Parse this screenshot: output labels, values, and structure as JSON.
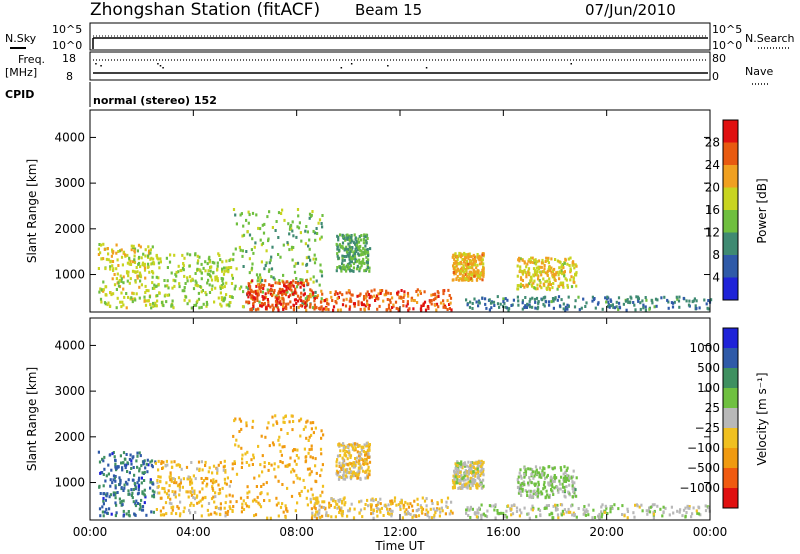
{
  "header": {
    "station": "Zhongshan Station (fitACF)",
    "beam": "Beam 15",
    "date": "07/Jun/2010"
  },
  "noise_panel": {
    "left_label": "N.Sky",
    "right_label": "N.Search",
    "left_top": "10^5",
    "left_bottom": "10^0",
    "right_top": "10^5",
    "right_bottom": "10^0"
  },
  "freq_panel": {
    "left_label_1": "Freq.",
    "left_label_2": "[MHz]",
    "left_top": "18",
    "left_bottom": "8",
    "right_label": "Nave",
    "right_top": "80",
    "right_bottom": "0"
  },
  "cpid_panel": {
    "label": "CPID",
    "text": "normal (stereo) 152"
  },
  "x_axis": {
    "label": "Time UT",
    "ticks": [
      "00:00",
      "04:00",
      "08:00",
      "12:00",
      "16:00",
      "20:00",
      "00:00"
    ],
    "range_hours": [
      0,
      24
    ]
  },
  "chart_data": [
    {
      "type": "heatmap",
      "ylabel": "Slant Range [km]",
      "yticks": [
        "1000",
        "2000",
        "3000",
        "4000"
      ],
      "ylim_km": [
        180,
        4600
      ],
      "colorbar_label": "Power [dB]",
      "colorbar_ticks": [
        "4",
        "8",
        "12",
        "16",
        "20",
        "24",
        "28"
      ],
      "colorbar_range": [
        0,
        32
      ],
      "colors": [
        "#1f23d8",
        "#2f5aa8",
        "#3f8a72",
        "#6fbf3f",
        "#c8d420",
        "#f0a020",
        "#e85a10",
        "#e01010"
      ],
      "regions": [
        {
          "t": [
            0.3,
            2.5
          ],
          "r": [
            300,
            1700
          ],
          "v": 18
        },
        {
          "t": [
            2.5,
            5.5
          ],
          "r": [
            300,
            1500
          ],
          "v": 16
        },
        {
          "t": [
            5.5,
            9.0
          ],
          "r": [
            250,
            2500
          ],
          "v": 14
        },
        {
          "t": [
            6.0,
            8.5
          ],
          "r": [
            250,
            900
          ],
          "v": 27
        },
        {
          "t": [
            8.5,
            14.0
          ],
          "r": [
            250,
            700
          ],
          "v": 26
        },
        {
          "t": [
            9.5,
            10.8
          ],
          "r": [
            1100,
            1900
          ],
          "v": 12
        },
        {
          "t": [
            14.0,
            15.2
          ],
          "r": [
            900,
            1500
          ],
          "v": 21
        },
        {
          "t": [
            16.5,
            18.8
          ],
          "r": [
            700,
            1400
          ],
          "v": 19
        },
        {
          "t": [
            14.5,
            24.0
          ],
          "r": [
            250,
            550
          ],
          "v": 9
        }
      ]
    },
    {
      "type": "heatmap",
      "ylabel": "Slant Range [km]",
      "yticks": [
        "1000",
        "2000",
        "3000",
        "4000"
      ],
      "ylim_km": [
        180,
        4600
      ],
      "colorbar_label": "Velocity [m s⁻¹]",
      "colorbar_ticks": [
        "1000",
        "500",
        "100",
        "25",
        "−25",
        "−100",
        "−500",
        "−1000"
      ],
      "colorbar_range": [
        -1200,
        1200
      ],
      "colors": [
        "#e01010",
        "#f05a10",
        "#f09a10",
        "#f0c020",
        "#b8b8b8",
        "#6fc040",
        "#3f9060",
        "#2f5aa8",
        "#1f23d8"
      ],
      "regions": [
        {
          "t": [
            0.3,
            2.5
          ],
          "r": [
            300,
            1700
          ],
          "v": 700
        },
        {
          "t": [
            2.5,
            5.5
          ],
          "r": [
            300,
            1500
          ],
          "v": -300
        },
        {
          "t": [
            5.5,
            9.0
          ],
          "r": [
            250,
            2500
          ],
          "v": -400
        },
        {
          "t": [
            8.5,
            14.0
          ],
          "r": [
            250,
            700
          ],
          "v": -200
        },
        {
          "t": [
            9.5,
            10.8
          ],
          "r": [
            1100,
            1900
          ],
          "v": -250
        },
        {
          "t": [
            14.0,
            15.2
          ],
          "r": [
            900,
            1500
          ],
          "v": -60
        },
        {
          "t": [
            16.5,
            18.8
          ],
          "r": [
            700,
            1400
          ],
          "v": 150
        },
        {
          "t": [
            14.5,
            24.0
          ],
          "r": [
            250,
            550
          ],
          "v": 80
        }
      ]
    }
  ]
}
